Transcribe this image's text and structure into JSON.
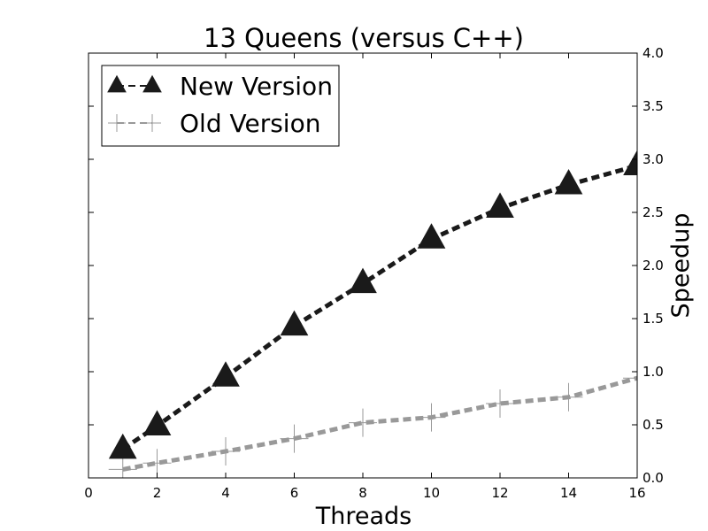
{
  "chart_data": {
    "type": "line",
    "title": "13 Queens (versus C++)",
    "xlabel": "Threads",
    "ylabel": "Speedup",
    "xlim": [
      0,
      16
    ],
    "ylim": [
      0,
      4.0
    ],
    "x_ticks": [
      0,
      2,
      4,
      6,
      8,
      10,
      12,
      14,
      16
    ],
    "y_ticks": [
      0,
      0.5,
      1.0,
      1.5,
      2.0,
      2.5,
      3.0,
      3.5,
      4.0
    ],
    "x_tick_labels": [
      "0",
      "2",
      "4",
      "6",
      "8",
      "10",
      "12",
      "14",
      "16"
    ],
    "y_tick_labels": [
      "0.0",
      "0.5",
      "1.0",
      "1.5",
      "2.0",
      "2.5",
      "3.0",
      "3.5",
      "4.0"
    ],
    "y_axis_side": "right",
    "grid": false,
    "legend_position": "top-left",
    "x": [
      1,
      2,
      4,
      6,
      8,
      10,
      12,
      14,
      16
    ],
    "series": [
      {
        "name": "New Version",
        "values": [
          0.27,
          0.49,
          0.95,
          1.43,
          1.83,
          2.25,
          2.54,
          2.76,
          2.94
        ],
        "color": "#1a1a1a",
        "marker": "triangle",
        "line_style": "dashed"
      },
      {
        "name": "Old Version",
        "values": [
          0.08,
          0.14,
          0.25,
          0.37,
          0.52,
          0.57,
          0.7,
          0.76,
          0.94
        ],
        "color": "#999999",
        "marker": "plus",
        "line_style": "dashed"
      }
    ]
  }
}
